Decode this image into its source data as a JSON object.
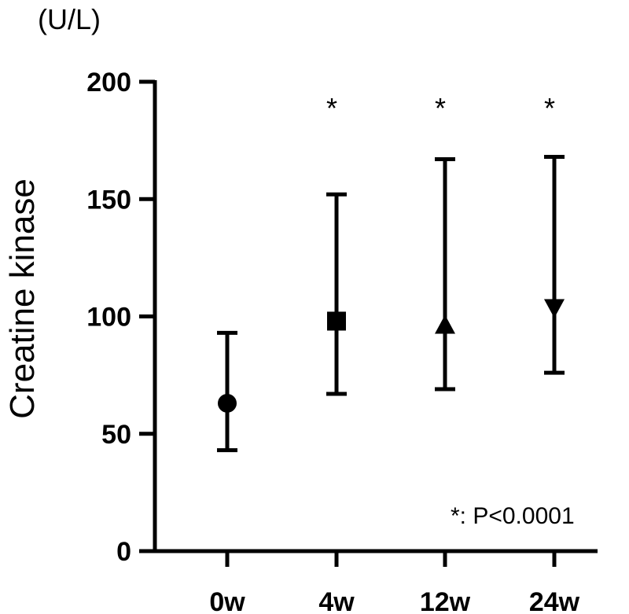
{
  "chart_data": {
    "type": "scatter",
    "title": "",
    "unit": "(U/L)",
    "ylabel": "Creatine kinase",
    "xlabel": "",
    "ylim": [
      0,
      200
    ],
    "yticks": [
      0,
      50,
      100,
      150,
      200
    ],
    "categories": [
      "0w",
      "4w",
      "12w",
      "24w"
    ],
    "points": [
      {
        "x": "0w",
        "y": 63,
        "low": 43,
        "high": 93,
        "marker": "circle",
        "sig": ""
      },
      {
        "x": "4w",
        "y": 98,
        "low": 67,
        "high": 152,
        "marker": "square",
        "sig": "*"
      },
      {
        "x": "12w",
        "y": 96,
        "low": 69,
        "high": 167,
        "marker": "triangle-up",
        "sig": "*"
      },
      {
        "x": "24w",
        "y": 104,
        "low": 76,
        "high": 168,
        "marker": "triangle-down",
        "sig": "*"
      }
    ],
    "annotation": "*: P<0.0001",
    "grid": false,
    "color": "#000000"
  }
}
